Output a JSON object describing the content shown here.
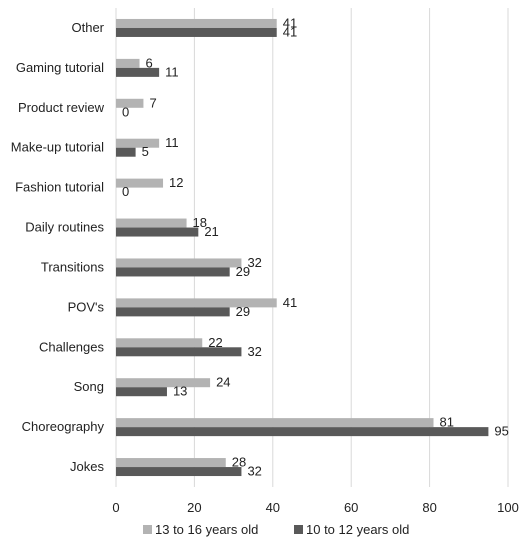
{
  "chart_data": {
    "type": "bar",
    "orientation": "horizontal",
    "categories": [
      "Other",
      "Gaming tutorial",
      "Product review",
      "Make-up tutorial",
      "Fashion tutorial",
      "Daily routines",
      "Transitions",
      "POV's",
      "Challenges",
      "Song",
      "Choreography",
      "Jokes"
    ],
    "series": [
      {
        "name": "13 to 16 years old",
        "color": "#b3b3b3",
        "values": [
          41,
          6,
          7,
          11,
          12,
          18,
          32,
          41,
          22,
          24,
          81,
          28
        ]
      },
      {
        "name": "10 to 12 years old",
        "color": "#595959",
        "values": [
          41,
          11,
          0,
          5,
          0,
          21,
          29,
          29,
          32,
          13,
          95,
          32
        ]
      }
    ],
    "xlim": [
      0,
      100
    ],
    "xticks": [
      0,
      20,
      40,
      60,
      80,
      100
    ],
    "grid": true,
    "legend_position": "bottom",
    "data_labels": true
  }
}
